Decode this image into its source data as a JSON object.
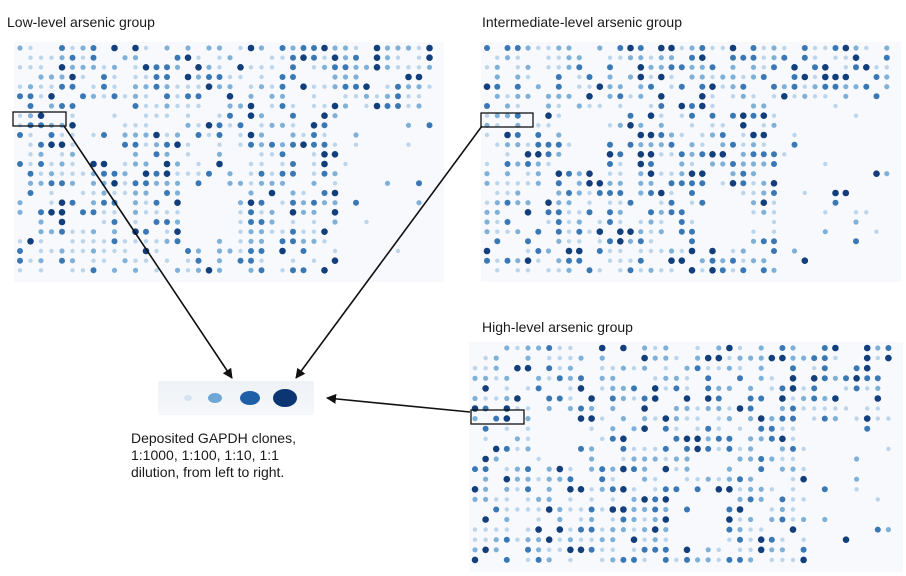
{
  "labels": {
    "low": "Low-level arsenic group",
    "intermediate": "Intermediate-level arsenic group",
    "high": "High-level arsenic group"
  },
  "caption": {
    "line1": "Deposited GAPDH clones,",
    "line2": "1:1000, 1:100, 1:10, 1:1",
    "line3": "dilution, from left to right."
  },
  "colors": {
    "spot_dark": "#0b3a7a",
    "spot_mid": "#2f6fb0",
    "spot_light": "#9cc2e2",
    "arrow": "#111111"
  },
  "dilution_series": [
    "1:1000",
    "1:100",
    "1:10",
    "1:1"
  ]
}
